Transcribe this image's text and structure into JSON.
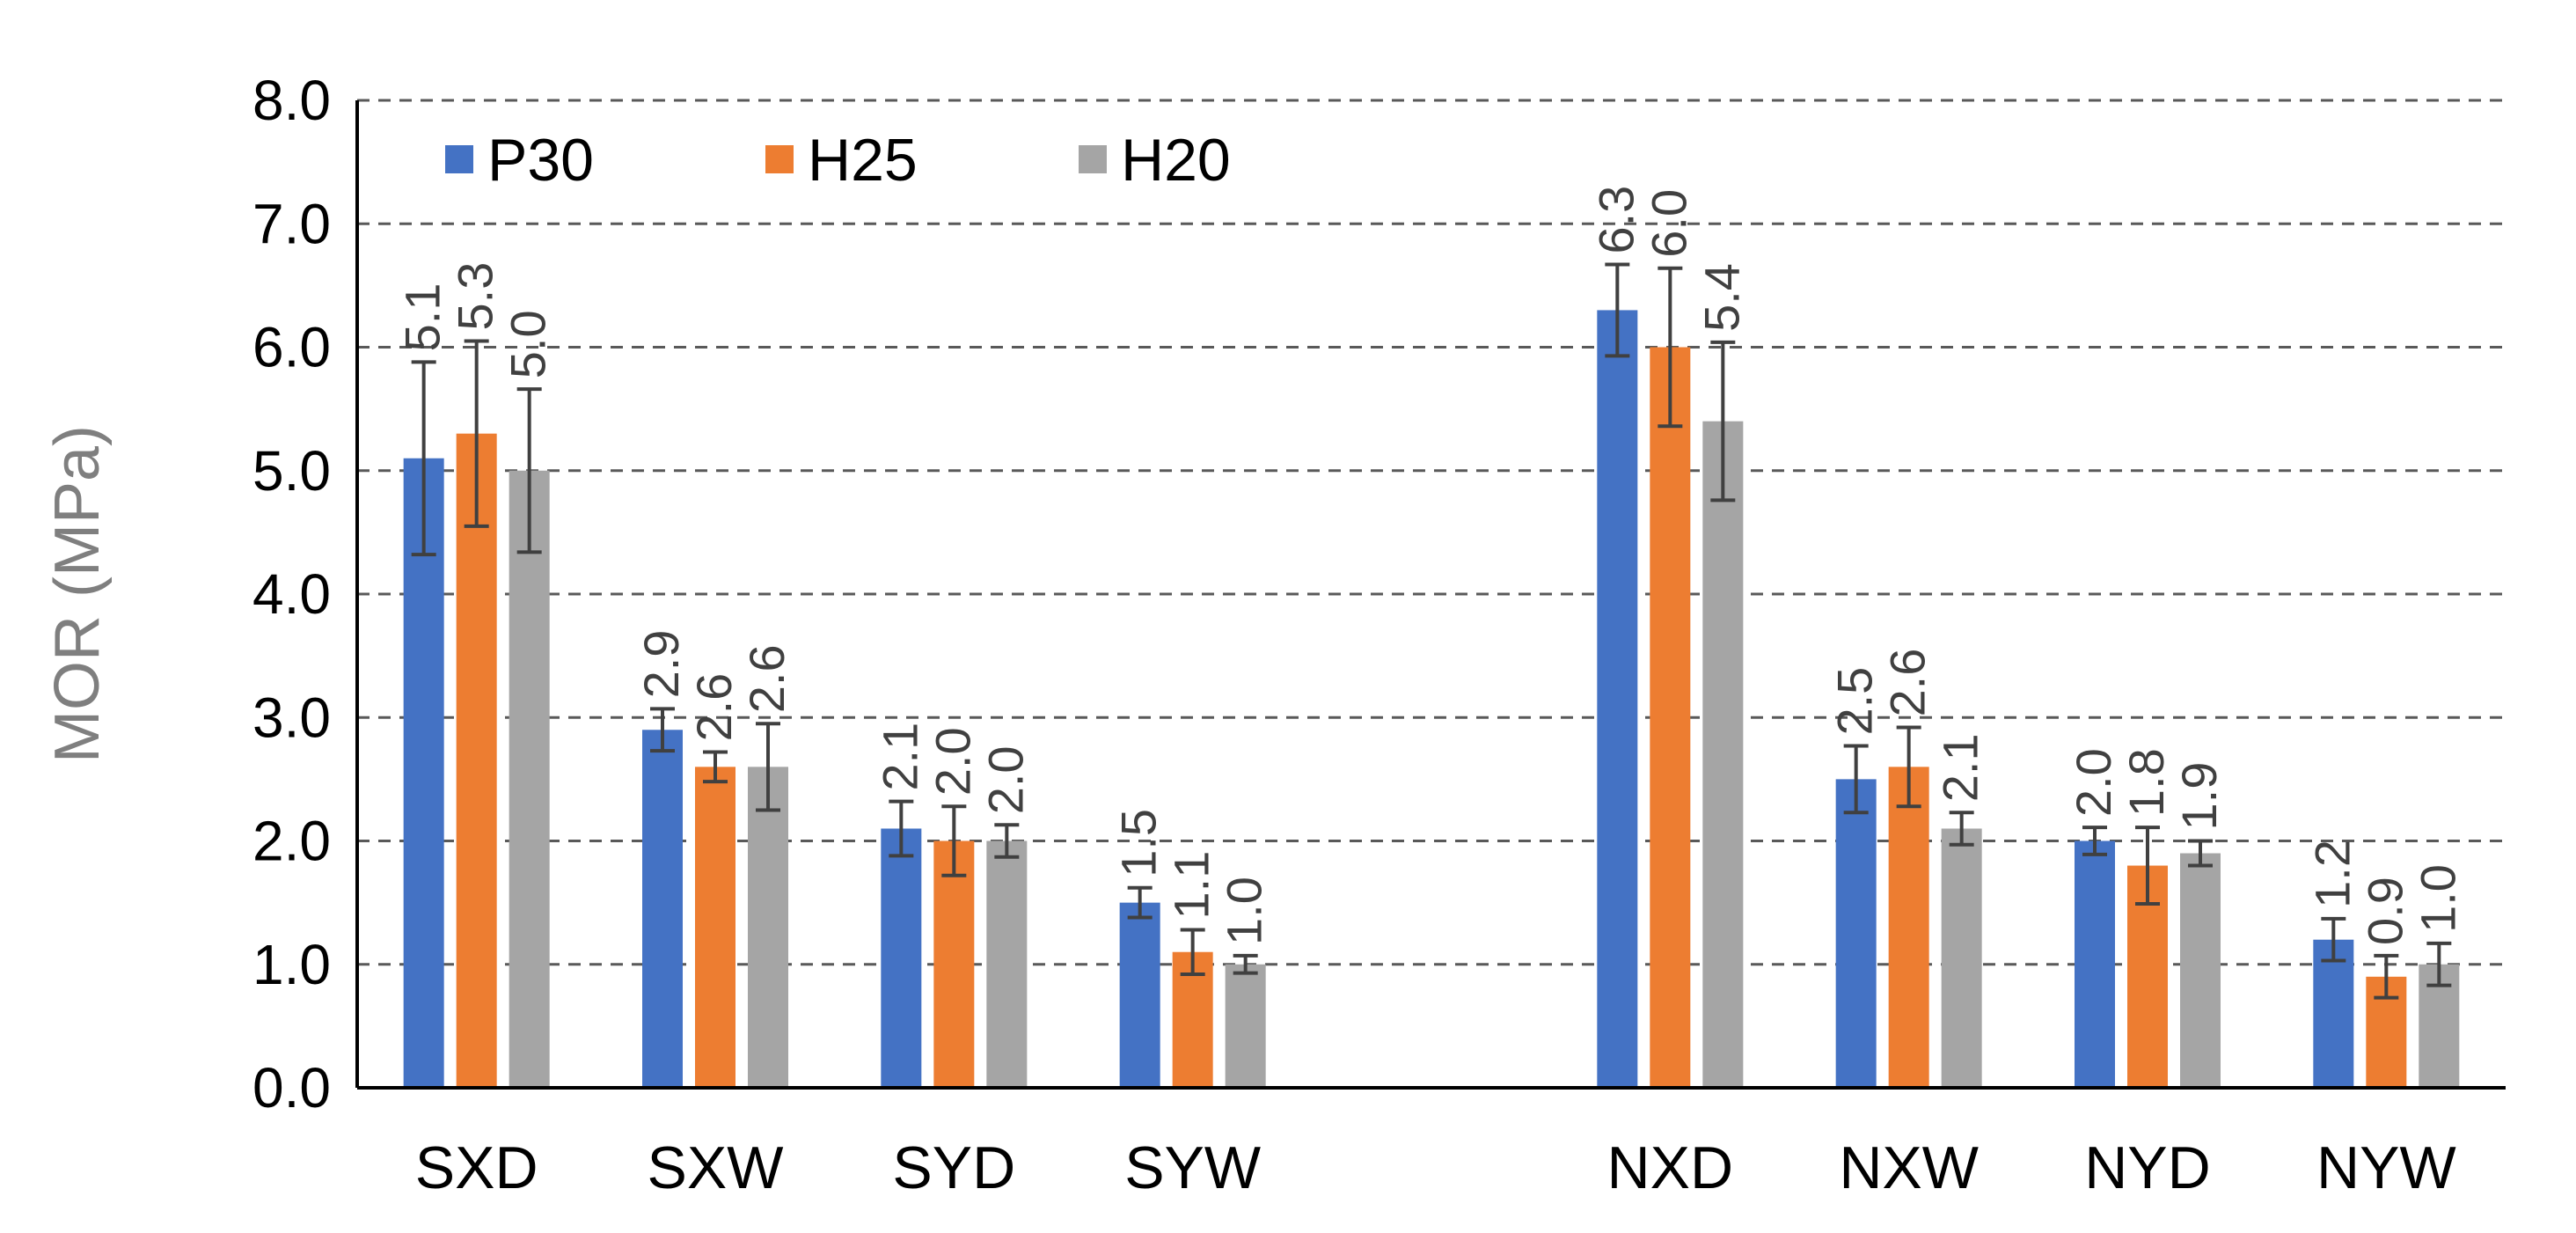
{
  "chart_data": {
    "type": "bar",
    "title": "",
    "xlabel": "",
    "ylabel": "MOR (MPa)",
    "ylim": [
      0,
      8
    ],
    "yticks": [
      "0.0",
      "1.0",
      "2.0",
      "3.0",
      "4.0",
      "5.0",
      "6.0",
      "7.0",
      "8.0"
    ],
    "grid": "horizontal dashed",
    "legend_position": "top-left",
    "categories": [
      "SXD",
      "SXW",
      "SYD",
      "SYW",
      "",
      "NXD",
      "NXW",
      "NYD",
      "NYW"
    ],
    "series": [
      {
        "name": "P30",
        "color": "#4472c4",
        "values": [
          5.1,
          2.9,
          2.1,
          1.5,
          null,
          6.3,
          2.5,
          2.0,
          1.2
        ],
        "labels": [
          "5.1",
          "2.9",
          "2.1",
          "1.5",
          null,
          "6.3",
          "2.5",
          "2.0",
          "1.2"
        ],
        "errors": [
          0.78,
          0.17,
          0.22,
          0.12,
          null,
          0.37,
          0.27,
          0.11,
          0.17
        ]
      },
      {
        "name": "H25",
        "color": "#ed7d31",
        "values": [
          5.3,
          2.6,
          2.0,
          1.1,
          null,
          6.0,
          2.6,
          1.8,
          0.9
        ],
        "labels": [
          "5.3",
          "2.6",
          "2.0",
          "1.1",
          null,
          "6.0",
          "2.6",
          "1.8",
          "0.9"
        ],
        "errors": [
          0.75,
          0.12,
          0.28,
          0.18,
          null,
          0.64,
          0.32,
          0.31,
          0.17
        ]
      },
      {
        "name": "H20",
        "color": "#a5a5a5",
        "values": [
          5.0,
          2.6,
          2.0,
          1.0,
          null,
          5.4,
          2.1,
          1.9,
          1.0
        ],
        "labels": [
          "5.0",
          "2.6",
          "2.0",
          "1.0",
          null,
          "5.4",
          "2.1",
          "1.9",
          "1.0"
        ],
        "errors": [
          0.66,
          0.35,
          0.13,
          0.07,
          null,
          0.64,
          0.13,
          0.1,
          0.17
        ]
      }
    ]
  }
}
